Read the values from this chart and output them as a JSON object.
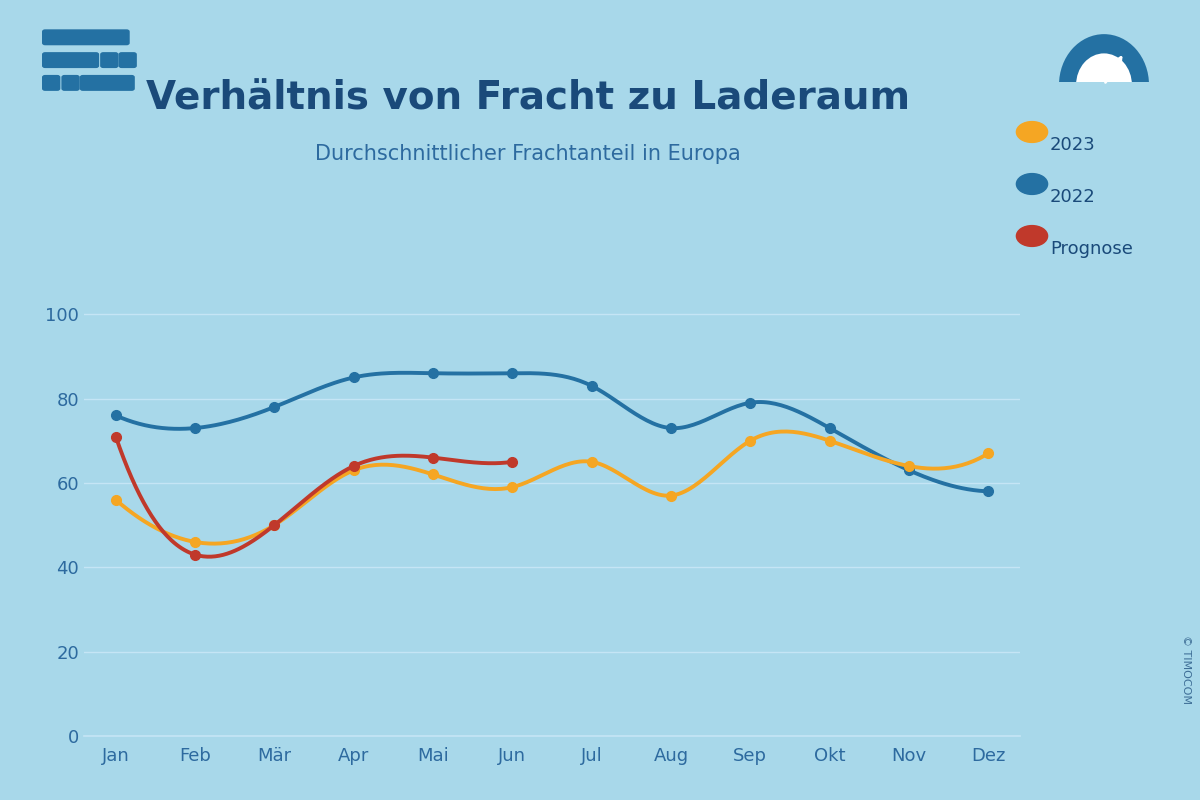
{
  "title": "Verhältnis von Fracht zu Laderaum",
  "subtitle": "Durchschnittlicher Frachtanteil in Europa",
  "background_color": "#a8d8ea",
  "title_color": "#1a4a7a",
  "subtitle_color": "#2d6a9f",
  "grid_color": "#c5e5f5",
  "axis_label_color": "#2d6a9f",
  "months": [
    "Jan",
    "Feb",
    "Mär",
    "Apr",
    "Mai",
    "Jun",
    "Jul",
    "Aug",
    "Sep",
    "Okt",
    "Nov",
    "Dez"
  ],
  "data_2022": [
    76,
    73,
    78,
    85,
    86,
    86,
    83,
    73,
    79,
    73,
    63,
    58
  ],
  "data_2023": [
    56,
    46,
    50,
    63,
    62,
    59,
    65,
    57,
    70,
    70,
    64,
    67
  ],
  "data_prognose": [
    71,
    43,
    50,
    64,
    66,
    65,
    null,
    null,
    null,
    null,
    null,
    null
  ],
  "color_2022": "#2471a3",
  "color_2023": "#f5a623",
  "color_prognose": "#c0392b",
  "ylim": [
    0,
    110
  ],
  "yticks": [
    0,
    20,
    40,
    60,
    80,
    100
  ],
  "line_width": 2.8,
  "marker_size": 7,
  "copyright_text": "© TIMOCOM",
  "legend_labels": [
    "2023",
    "2022",
    "Prognose"
  ]
}
